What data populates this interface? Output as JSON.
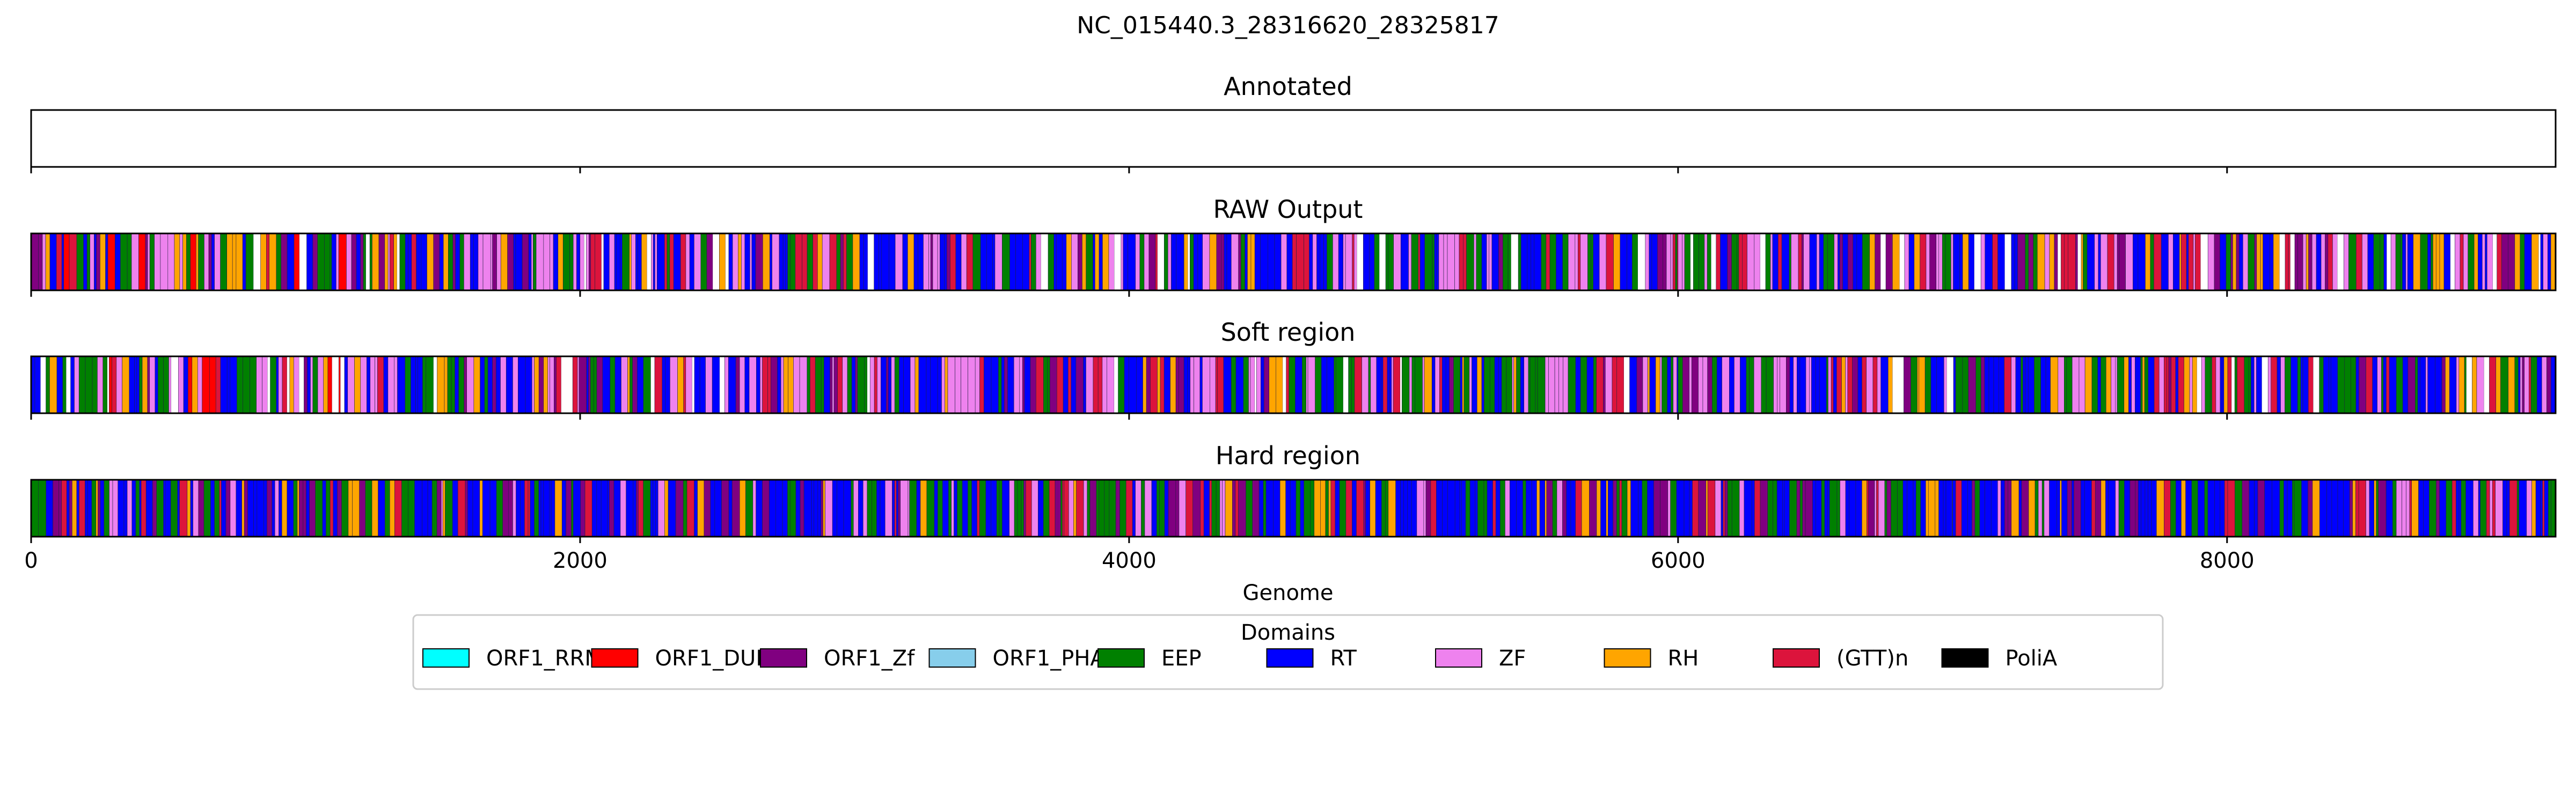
{
  "figure": {
    "title": "NC_015440.3_28316620_28325817"
  },
  "chart_data": {
    "type": "genome-track",
    "xlabel": "Genome",
    "xlim": [
      0,
      9197
    ],
    "xticks": [
      0,
      2000,
      4000,
      6000,
      8000
    ],
    "grid": false,
    "legend": {
      "title": "Domains",
      "placement": "bottom-center",
      "entries": [
        {
          "name": "ORF1_RRM",
          "color": "#00FFFF"
        },
        {
          "name": "ORF1_DUF",
          "color": "#FF0000"
        },
        {
          "name": "ORF1_Zf",
          "color": "#800080"
        },
        {
          "name": "ORF1_PHA",
          "color": "#87CEEB"
        },
        {
          "name": "EEP",
          "color": "#008000"
        },
        {
          "name": "RT",
          "color": "#0000FF"
        },
        {
          "name": "ZF",
          "color": "#EE82EE"
        },
        {
          "name": "RH",
          "color": "#FFA500"
        },
        {
          "name": "(GTT)n",
          "color": "#DC143C"
        },
        {
          "name": "PoliA",
          "color": "#000000"
        }
      ]
    },
    "tracks": [
      {
        "title": "Annotated",
        "segments": []
      },
      {
        "title": "RAW Output",
        "segments": [
          {
            "start": 0,
            "end": 1200,
            "pattern": [
              "EEP",
              "RT",
              "ZF",
              "RH",
              "(GTT)n",
              "ORF1_Zf",
              "ORF1_DUF",
              "RT",
              "EEP",
              "ZF"
            ]
          },
          {
            "start": 1200,
            "end": 2600,
            "pattern": [
              "RT",
              "ZF",
              "EEP",
              "ORF1_Zf",
              "RT",
              "(GTT)n",
              "RH",
              "EEP",
              "ZF",
              "RT"
            ]
          },
          {
            "start": 2600,
            "end": 4200,
            "pattern": [
              "EEP",
              "RT",
              "ORF1_Zf",
              "ZF",
              "RH",
              "RT",
              "EEP",
              "(GTT)n",
              "ZF",
              "RT"
            ]
          },
          {
            "start": 4200,
            "end": 6000,
            "pattern": [
              "RT",
              "EEP",
              "ZF",
              "RT",
              "ORF1_Zf",
              "RH",
              "(GTT)n",
              "EEP",
              "RT",
              "ZF"
            ]
          },
          {
            "start": 6000,
            "end": 7600,
            "pattern": [
              "EEP",
              "ZF",
              "RT",
              "RT",
              "(GTT)n",
              "ORF1_Zf",
              "EEP",
              "RH",
              "RT",
              "ZF"
            ]
          },
          {
            "start": 7600,
            "end": 9197,
            "pattern": [
              "RT",
              "EEP",
              "ZF",
              "(GTT)n",
              "RT",
              "ORF1_Zf",
              "EEP",
              "RH",
              "RT",
              "ZF"
            ]
          }
        ]
      },
      {
        "title": "Soft region",
        "segments": [
          {
            "start": 0,
            "end": 1200,
            "pattern": [
              "EEP",
              "RT",
              "ZF",
              "RH",
              "(GTT)n",
              "ORF1_Zf",
              "ORF1_DUF",
              "RT",
              "EEP",
              "ZF"
            ]
          },
          {
            "start": 1200,
            "end": 2600,
            "pattern": [
              "RT",
              "ZF",
              "EEP",
              "ORF1_Zf",
              "RT",
              "(GTT)n",
              "RH",
              "EEP",
              "ZF",
              "RT"
            ]
          },
          {
            "start": 2600,
            "end": 4200,
            "pattern": [
              "EEP",
              "RT",
              "ORF1_Zf",
              "ZF",
              "RH",
              "RT",
              "EEP",
              "(GTT)n",
              "ZF",
              "RT"
            ]
          },
          {
            "start": 4200,
            "end": 6000,
            "pattern": [
              "RT",
              "EEP",
              "ZF",
              "RT",
              "ORF1_Zf",
              "RH",
              "(GTT)n",
              "EEP",
              "RT",
              "ZF"
            ]
          },
          {
            "start": 6000,
            "end": 7600,
            "pattern": [
              "EEP",
              "ZF",
              "RT",
              "RT",
              "(GTT)n",
              "ORF1_Zf",
              "EEP",
              "RH",
              "RT",
              "ZF"
            ]
          },
          {
            "start": 7600,
            "end": 9197,
            "pattern": [
              "RT",
              "EEP",
              "ZF",
              "(GTT)n",
              "RT",
              "ORF1_Zf",
              "EEP",
              "RH",
              "RT",
              "ZF"
            ]
          }
        ]
      },
      {
        "title": "Hard region",
        "segments": [
          {
            "start": 0,
            "end": 1500,
            "pattern": [
              "EEP",
              "RT",
              "RT",
              "ORF1_Zf",
              "(GTT)n",
              "EEP",
              "RH",
              "RT",
              "ZF",
              "EEP"
            ]
          },
          {
            "start": 1500,
            "end": 3200,
            "pattern": [
              "RT",
              "EEP",
              "RT",
              "ZF",
              "ORF1_Zf",
              "RT",
              "(GTT)n",
              "EEP",
              "RT",
              "RH"
            ]
          },
          {
            "start": 3200,
            "end": 5000,
            "pattern": [
              "EEP",
              "RT",
              "ORF1_Zf",
              "RT",
              "EEP",
              "ZF",
              "RH",
              "RT",
              "(GTT)n",
              "EEP"
            ]
          },
          {
            "start": 5000,
            "end": 7000,
            "pattern": [
              "RT",
              "RT",
              "EEP",
              "ZF",
              "RT",
              "ORF1_Zf",
              "RT",
              "EEP",
              "(GTT)n",
              "RH"
            ]
          },
          {
            "start": 7000,
            "end": 9197,
            "pattern": [
              "EEP",
              "RT",
              "RH",
              "RT",
              "ZF",
              "(GTT)n",
              "EEP",
              "RT",
              "ORF1_Zf",
              "RT"
            ]
          }
        ]
      }
    ]
  }
}
